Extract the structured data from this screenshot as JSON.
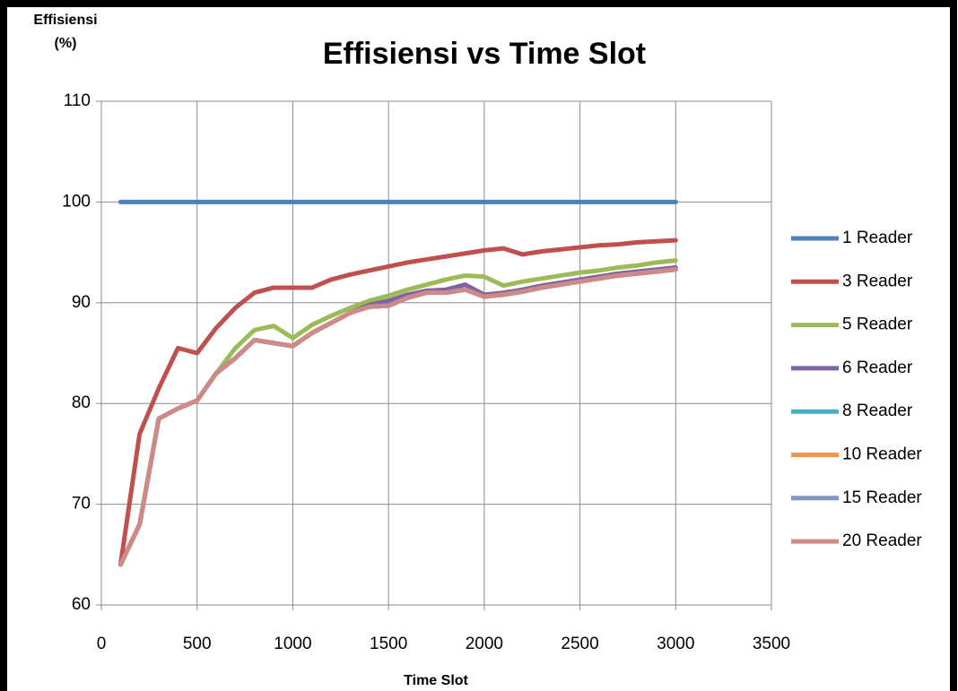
{
  "chart_data": {
    "type": "line",
    "title": "Effisiensi vs Time Slot",
    "x_label": "Time Slot",
    "y_label": "Effisiensi (%)",
    "x": [
      100,
      200,
      300,
      400,
      500,
      600,
      700,
      800,
      900,
      1000,
      1100,
      1200,
      1300,
      1400,
      1500,
      1600,
      1700,
      1800,
      1900,
      2000,
      2100,
      2200,
      2300,
      2400,
      2500,
      2600,
      2700,
      2800,
      2900,
      3000
    ],
    "xlim": [
      0,
      3500
    ],
    "xticks": [
      0,
      500,
      1000,
      1500,
      2000,
      2500,
      3000,
      3500
    ],
    "ylim": [
      60,
      110
    ],
    "yticks": [
      60,
      70,
      80,
      90,
      100,
      110
    ],
    "grid": true,
    "legend": "right",
    "series": [
      {
        "name": "1 Reader",
        "color": "#4f81bd",
        "values": [
          100,
          100,
          100,
          100,
          100,
          100,
          100,
          100,
          100,
          100,
          100,
          100,
          100,
          100,
          100,
          100,
          100,
          100,
          100,
          100,
          100,
          100,
          100,
          100,
          100,
          100,
          100,
          100,
          100,
          100
        ]
      },
      {
        "name": "3 Reader",
        "color": "#c0504d",
        "values": [
          64,
          77,
          81.5,
          85.5,
          85,
          87.5,
          89.5,
          91,
          91.5,
          91.5,
          91.5,
          92.3,
          92.8,
          93.2,
          93.6,
          94,
          94.3,
          94.6,
          94.9,
          95.2,
          95.4,
          94.8,
          95.1,
          95.3,
          95.5,
          95.7,
          95.8,
          96,
          96.1,
          96.2
        ]
      },
      {
        "name": "5 Reader",
        "color": "#9bbb59",
        "values": [
          64,
          68,
          78.5,
          79.5,
          80.3,
          83,
          85.5,
          87.3,
          87.7,
          86.5,
          87.8,
          88.7,
          89.5,
          90.2,
          90.7,
          91.3,
          91.8,
          92.3,
          92.7,
          92.6,
          91.7,
          92.1,
          92.4,
          92.7,
          93,
          93.2,
          93.5,
          93.7,
          94,
          94.2
        ]
      },
      {
        "name": "6 Reader",
        "color": "#8064a2",
        "values": [
          64,
          68,
          78.5,
          79.5,
          80.3,
          83,
          84.5,
          86.3,
          86,
          85.7,
          87,
          88,
          89,
          89.8,
          90.2,
          90.8,
          91.2,
          91.3,
          91.8,
          90.8,
          91,
          91.3,
          91.7,
          92,
          92.3,
          92.6,
          92.9,
          93.1,
          93.3,
          93.5
        ]
      },
      {
        "name": "8 Reader",
        "color": "#4bacc6",
        "values": [
          64,
          68,
          78.5,
          79.5,
          80.3,
          83,
          84.5,
          86.3,
          86,
          85.7,
          87,
          88,
          89,
          89.6,
          89.7,
          90.5,
          91,
          91,
          91.3,
          90.6,
          90.8,
          91.1,
          91.5,
          91.8,
          92.1,
          92.4,
          92.7,
          92.9,
          93.1,
          93.3
        ]
      },
      {
        "name": "10 Reader",
        "color": "#f79646",
        "values": [
          64,
          68,
          78.5,
          79.5,
          80.3,
          83,
          84.5,
          86.3,
          86,
          85.7,
          87,
          88,
          89,
          89.6,
          89.7,
          90.5,
          91,
          91,
          91.3,
          90.6,
          90.8,
          91.1,
          91.5,
          91.8,
          92.1,
          92.4,
          92.7,
          92.9,
          93.1,
          93.3
        ]
      },
      {
        "name": "15 Reader",
        "color": "#7f96c0",
        "values": [
          64,
          68,
          78.5,
          79.5,
          80.3,
          83,
          84.5,
          86.3,
          86,
          85.7,
          87,
          88,
          89,
          89.6,
          89.7,
          90.5,
          91,
          91,
          91.3,
          90.6,
          90.8,
          91.1,
          91.5,
          91.8,
          92.1,
          92.4,
          92.7,
          92.9,
          93.1,
          93.3
        ]
      },
      {
        "name": "20 Reader",
        "color": "#cf8a88",
        "values": [
          64,
          68,
          78.5,
          79.5,
          80.3,
          83,
          84.5,
          86.3,
          86,
          85.7,
          87,
          88,
          89,
          89.6,
          89.7,
          90.5,
          91,
          91,
          91.3,
          90.6,
          90.8,
          91.1,
          91.5,
          91.8,
          92.1,
          92.4,
          92.7,
          92.9,
          93.1,
          93.3
        ]
      }
    ]
  }
}
